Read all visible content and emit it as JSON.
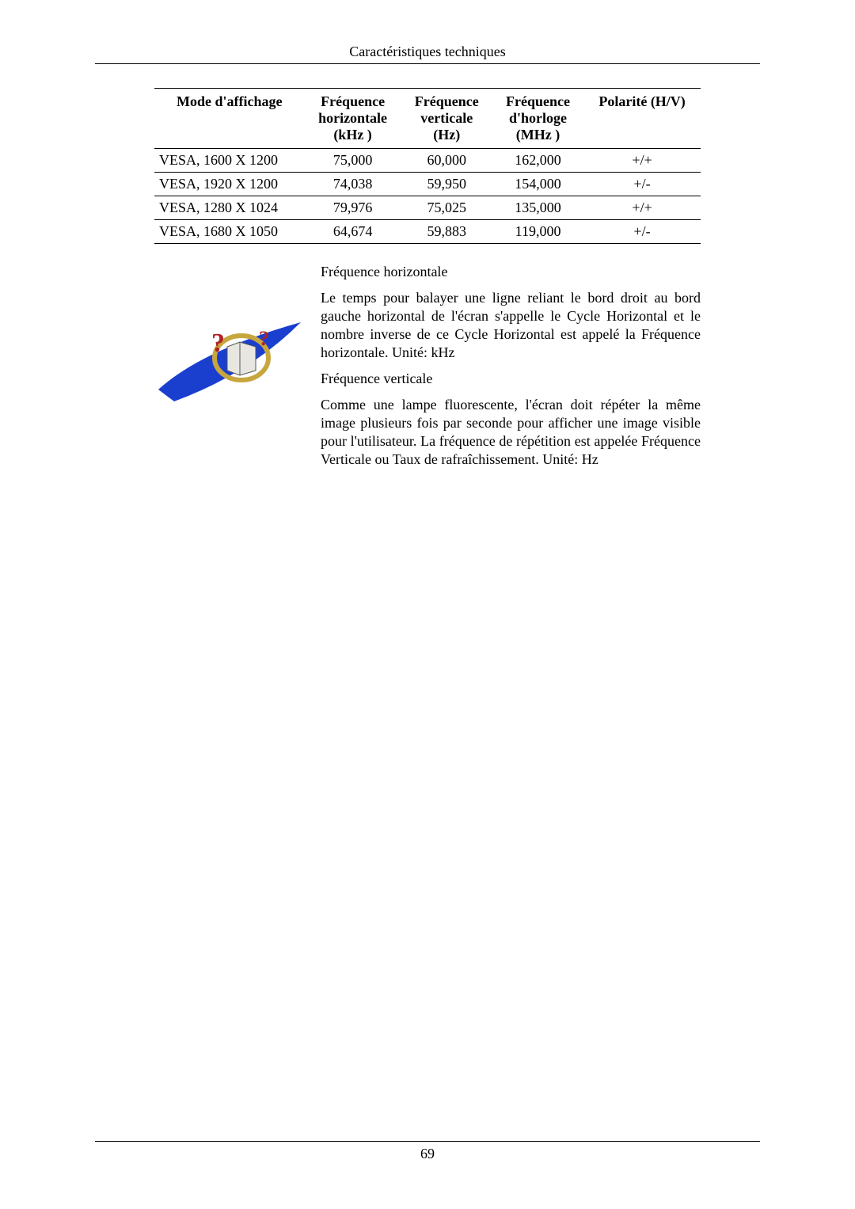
{
  "header": {
    "title": "Caractéristiques techniques"
  },
  "table": {
    "columns": [
      "Mode d'affichage",
      "Fréquence horizontale (kHz )",
      "Fréquence verticale (Hz)",
      "Fréquence d'horloge (MHz )",
      "Polarité (H/V)"
    ],
    "rows": [
      {
        "mode": "VESA, 1600 X 1200",
        "h": "75,000",
        "v": "60,000",
        "clk": "162,000",
        "pol": "+/+"
      },
      {
        "mode": "VESA, 1920 X 1200",
        "h": "74,038",
        "v": "59,950",
        "clk": "154,000",
        "pol": "+/-"
      },
      {
        "mode": "VESA, 1280 X 1024",
        "h": "79,976",
        "v": "75,025",
        "clk": "135,000",
        "pol": "+/+"
      },
      {
        "mode": "VESA, 1680 X 1050",
        "h": "64,674",
        "v": "59,883",
        "clk": "119,000",
        "pol": "+/-"
      }
    ]
  },
  "definitions": {
    "h_title": "Fréquence horizontale",
    "h_body": "Le temps pour balayer une ligne reliant le bord droit au bord gauche horizontal de l'écran s'appelle le Cycle Horizontal et le nombre inverse de ce Cycle Horizontal est appelé la Fréquence horizontale. Unité: kHz",
    "v_title": "Fréquence verticale",
    "v_body": "Comme une lampe fluorescente, l'écran doit répéter la même image plusieurs fois par seconde pour afficher une image visible pour l'utilisateur. La fréquence de répétition est appelée Fréquence Verticale ou Taux de rafraîchissement. Unité: Hz"
  },
  "icon": {
    "swoosh_color": "#1a3fcf",
    "ring_color": "#c7a63e",
    "book_body": "#e8e6e0",
    "qmark_color": "#b22222"
  },
  "footer": {
    "page_number": "69"
  }
}
